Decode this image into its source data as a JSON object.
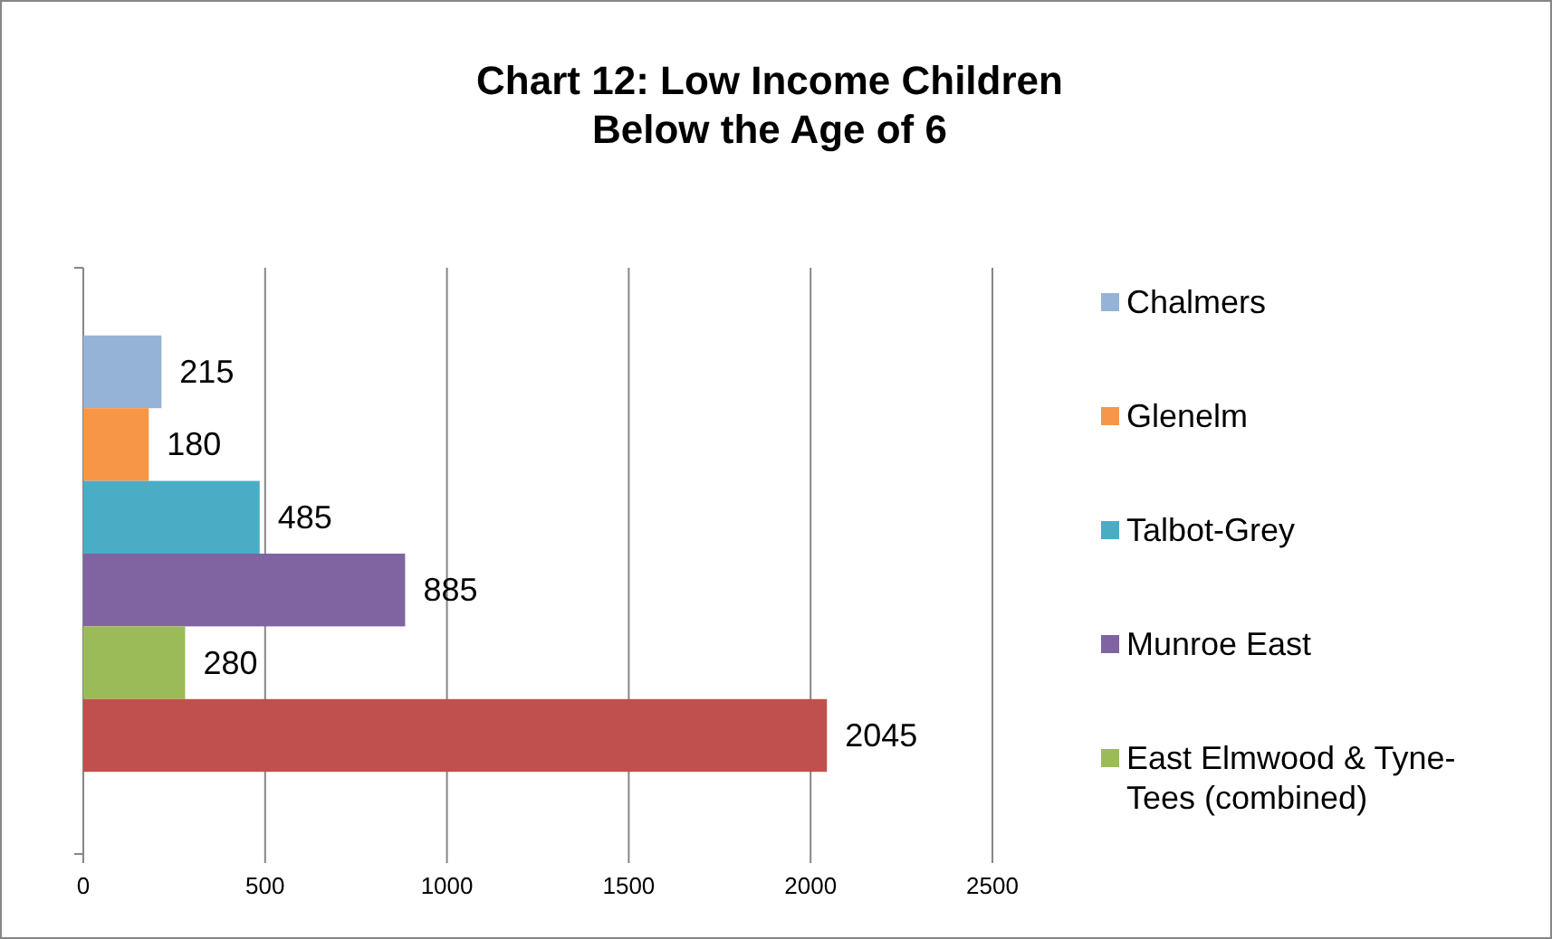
{
  "chart_data": {
    "type": "bar",
    "orientation": "horizontal",
    "title": "Chart 12: Low Income Children Below the Age of 6",
    "categories": [
      null
    ],
    "series": [
      {
        "name": "Chalmers",
        "color": "#95b3d7",
        "values": [
          215
        ]
      },
      {
        "name": "Glenelm",
        "color": "#f79646",
        "values": [
          180
        ]
      },
      {
        "name": "Talbot-Grey",
        "color": "#4bacc6",
        "values": [
          485
        ]
      },
      {
        "name": "Munroe East",
        "color": "#8064a2",
        "values": [
          885
        ]
      },
      {
        "name": "East Elmwood & Tyne-Tees (combined)",
        "color": "#9bbb59",
        "values": [
          280
        ]
      },
      {
        "color": "#c0504d",
        "values": [
          2045
        ]
      }
    ],
    "xlim": [
      0,
      2500
    ],
    "xticks": [
      0,
      500,
      1000,
      1500,
      2000,
      2500
    ],
    "grid": "x",
    "legend": "right",
    "data_labels": true
  }
}
